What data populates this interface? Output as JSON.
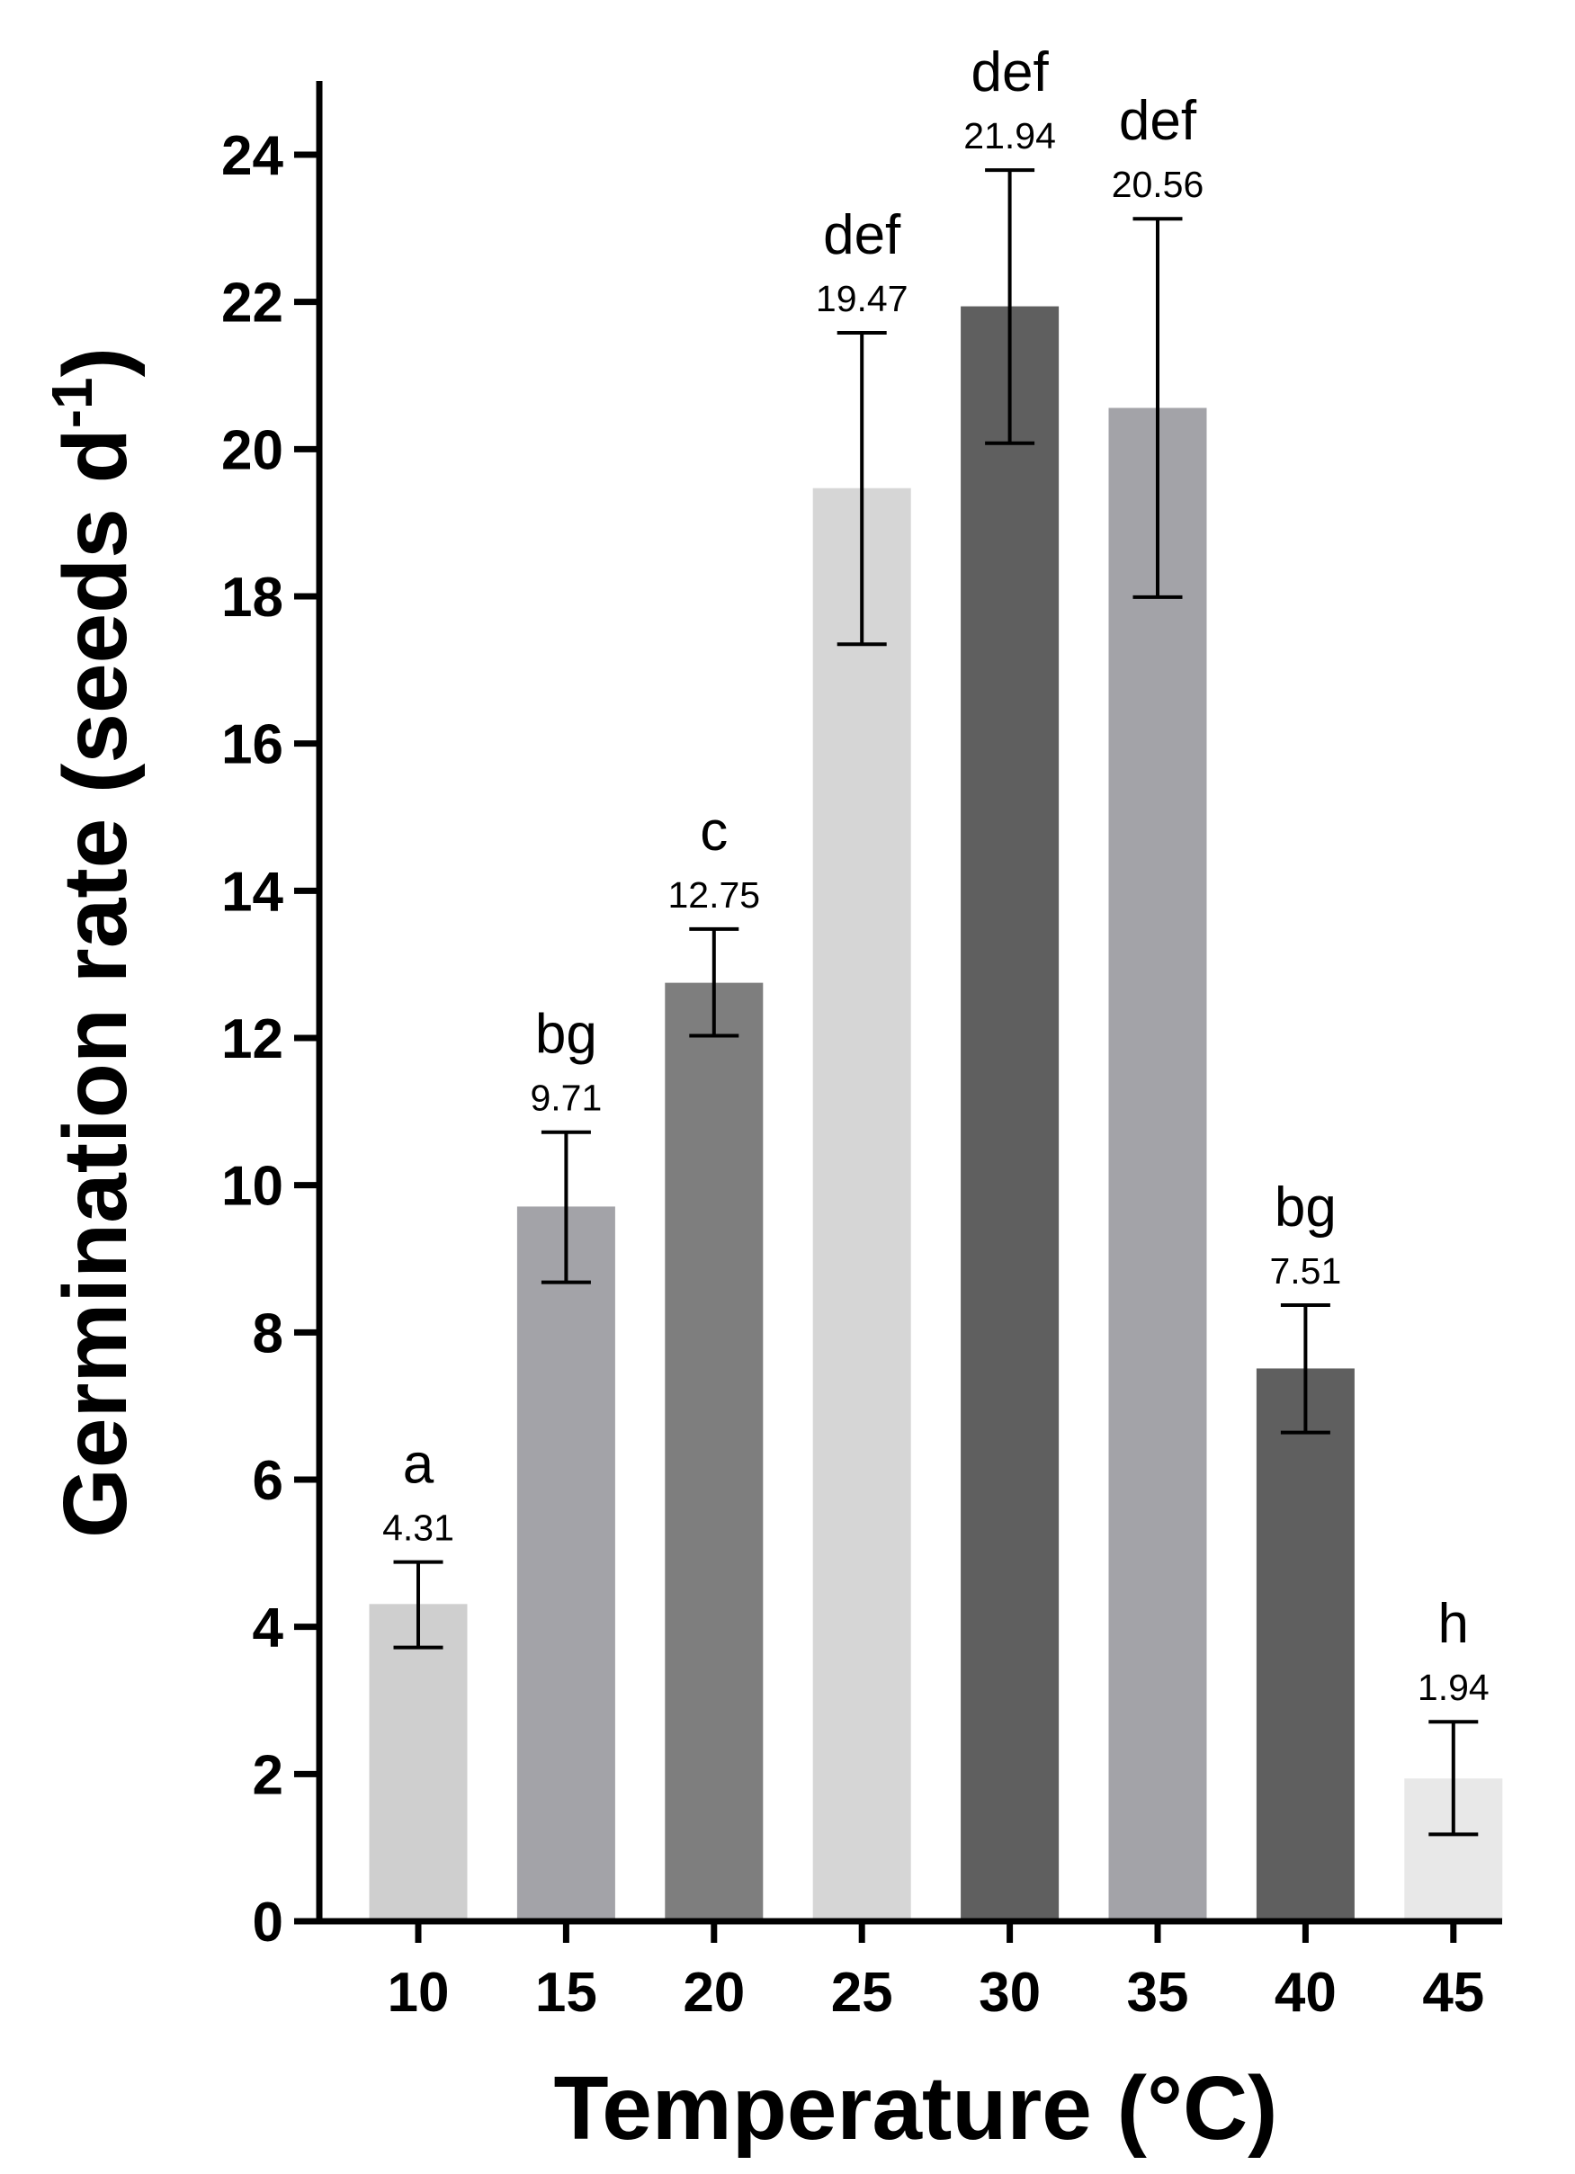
{
  "chart_data": {
    "type": "bar",
    "title": "",
    "xlabel": "Temperature (°C)",
    "ylabel": "Germination rate (seeds d",
    "ylabel_superscript": "-1",
    "ylabel_close": ")",
    "ylim": [
      0,
      25
    ],
    "yticks": [
      0,
      2,
      4,
      6,
      8,
      10,
      12,
      14,
      16,
      18,
      20,
      22,
      24
    ],
    "ytick_labels": [
      "0",
      "2",
      "4",
      "6",
      "8",
      "10",
      "12",
      "14",
      "16",
      "18",
      "20",
      "22",
      "24"
    ],
    "categories": [
      "10",
      "15",
      "20",
      "25",
      "30",
      "35",
      "40",
      "45"
    ],
    "values": [
      4.31,
      9.71,
      12.75,
      19.47,
      21.94,
      20.56,
      7.51,
      1.94
    ],
    "value_labels": [
      "4.31",
      "9.71",
      "12.75",
      "19.47",
      "21.94",
      "20.56",
      "7.51",
      "1.94"
    ],
    "error_low": [
      3.72,
      8.68,
      12.03,
      17.35,
      20.08,
      17.99,
      6.64,
      1.18
    ],
    "error_high": [
      4.88,
      10.72,
      13.48,
      21.58,
      23.79,
      23.13,
      8.37,
      2.71
    ],
    "significance_letters": [
      "a",
      "bg",
      "c",
      "def",
      "def",
      "def",
      "bg",
      "h"
    ],
    "bar_colors": [
      "#cfcfcf",
      "#a3a3a8",
      "#7e7e7e",
      "#d6d6d6",
      "#5f5f5f",
      "#a3a3a8",
      "#5f5f5f",
      "#e8e8e8"
    ],
    "grid": false,
    "legend": "none"
  }
}
